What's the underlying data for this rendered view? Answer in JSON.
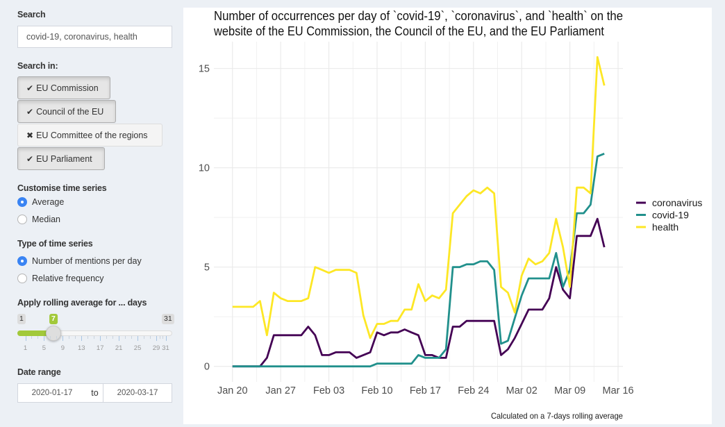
{
  "sidebar": {
    "search": {
      "label": "Search",
      "value": "covid-19, coronavirus, health"
    },
    "search_in": {
      "label": "Search in:",
      "options": [
        {
          "label": "EU Commission",
          "selected": true,
          "icon": "check-icon"
        },
        {
          "label": "Council of the EU",
          "selected": true,
          "icon": "check-icon"
        },
        {
          "label": "EU Committee of the regions",
          "selected": false,
          "icon": "cross-icon"
        },
        {
          "label": "EU Parliament",
          "selected": true,
          "icon": "check-icon"
        }
      ]
    },
    "customise": {
      "label": "Customise time series",
      "options": [
        {
          "label": "Average",
          "checked": true
        },
        {
          "label": "Median",
          "checked": false
        }
      ]
    },
    "series_type": {
      "label": "Type of time series",
      "options": [
        {
          "label": "Number of mentions per day",
          "checked": true
        },
        {
          "label": "Relative frequency",
          "checked": false
        }
      ]
    },
    "rolling": {
      "label": "Apply rolling average for ... days",
      "min": 1,
      "max": 31,
      "value": 7,
      "grid_labels": [
        1,
        5,
        9,
        13,
        17,
        21,
        25,
        29,
        31
      ],
      "accent": "#a2c93a"
    },
    "date_range": {
      "label": "Date range",
      "start": "2020-01-17",
      "separator": "to",
      "end": "2020-03-17"
    }
  },
  "chart_data": {
    "type": "line",
    "title_lines": [
      "Number of occurrences per day of `covid-19`, `coronavirus`, and `health` on the",
      "website of the EU Commission, the Council of the EU, and the EU Parliament"
    ],
    "xlabel": "",
    "ylabel": "",
    "caption": "Calculated on a 7-days rolling average",
    "legend_position": "right",
    "grid": true,
    "ylim": [
      -0.78,
      16.35
    ],
    "x_expand": 0.05,
    "y_ticks": [
      0,
      5,
      10,
      15
    ],
    "x_ticks": [
      {
        "date": "2020-01-20",
        "label": "Jan 20"
      },
      {
        "date": "2020-01-27",
        "label": "Jan 27"
      },
      {
        "date": "2020-02-03",
        "label": "Feb 03"
      },
      {
        "date": "2020-02-10",
        "label": "Feb 10"
      },
      {
        "date": "2020-02-17",
        "label": "Feb 17"
      },
      {
        "date": "2020-02-24",
        "label": "Feb 24"
      },
      {
        "date": "2020-03-02",
        "label": "Mar 02"
      },
      {
        "date": "2020-03-09",
        "label": "Mar 09"
      },
      {
        "date": "2020-03-16",
        "label": "Mar 16"
      }
    ],
    "x": [
      "2020-01-20",
      "2020-01-21",
      "2020-01-22",
      "2020-01-23",
      "2020-01-24",
      "2020-01-25",
      "2020-01-26",
      "2020-01-27",
      "2020-01-28",
      "2020-01-29",
      "2020-01-30",
      "2020-01-31",
      "2020-02-01",
      "2020-02-02",
      "2020-02-03",
      "2020-02-04",
      "2020-02-05",
      "2020-02-06",
      "2020-02-07",
      "2020-02-08",
      "2020-02-09",
      "2020-02-10",
      "2020-02-11",
      "2020-02-12",
      "2020-02-13",
      "2020-02-14",
      "2020-02-15",
      "2020-02-16",
      "2020-02-17",
      "2020-02-18",
      "2020-02-19",
      "2020-02-20",
      "2020-02-21",
      "2020-02-22",
      "2020-02-23",
      "2020-02-24",
      "2020-02-25",
      "2020-02-26",
      "2020-02-27",
      "2020-02-28",
      "2020-02-29",
      "2020-03-01",
      "2020-03-02",
      "2020-03-03",
      "2020-03-04",
      "2020-03-05",
      "2020-03-06",
      "2020-03-07",
      "2020-03-08",
      "2020-03-09",
      "2020-03-10",
      "2020-03-11",
      "2020-03-12",
      "2020-03-13",
      "2020-03-14"
    ],
    "series": [
      {
        "name": "coronavirus",
        "color": "#440154",
        "values": [
          0,
          0,
          0,
          0,
          0,
          0.43,
          1.57,
          1.57,
          1.57,
          1.57,
          1.57,
          2.0,
          1.57,
          0.57,
          0.57,
          0.71,
          0.71,
          0.71,
          0.43,
          0.57,
          0.71,
          1.71,
          1.57,
          1.71,
          1.71,
          1.86,
          1.71,
          1.57,
          0.57,
          0.57,
          0.43,
          0.43,
          2.0,
          2.0,
          2.29,
          2.29,
          2.29,
          2.29,
          2.29,
          0.57,
          0.86,
          1.43,
          2.14,
          2.86,
          2.86,
          2.86,
          3.43,
          5.0,
          3.86,
          3.43,
          6.57,
          6.57,
          6.57,
          7.43,
          6.0
        ]
      },
      {
        "name": "covid-19",
        "color": "#21908C",
        "values": [
          0,
          0,
          0,
          0,
          0,
          0,
          0,
          0,
          0,
          0,
          0,
          0,
          0,
          0,
          0,
          0,
          0,
          0,
          0,
          0,
          0,
          0.14,
          0.14,
          0.14,
          0.14,
          0.14,
          0.14,
          0.57,
          0.43,
          0.43,
          0.43,
          0.86,
          5.0,
          5.0,
          5.14,
          5.14,
          5.29,
          5.29,
          4.86,
          1.14,
          1.29,
          2.43,
          3.57,
          4.43,
          4.43,
          4.43,
          4.43,
          5.71,
          4.0,
          4.86,
          7.71,
          7.71,
          8.14,
          10.57,
          10.71
        ]
      },
      {
        "name": "health",
        "color": "#FDE725",
        "values": [
          3.0,
          3.0,
          3.0,
          3.0,
          3.29,
          1.57,
          3.71,
          3.43,
          3.29,
          3.29,
          3.29,
          3.43,
          5.0,
          4.86,
          4.71,
          4.86,
          4.86,
          4.86,
          4.71,
          2.57,
          1.43,
          2.14,
          2.14,
          2.29,
          2.29,
          2.86,
          2.86,
          4.14,
          3.29,
          3.57,
          3.43,
          3.86,
          7.71,
          8.14,
          8.57,
          8.86,
          8.71,
          9.0,
          8.71,
          4.0,
          3.71,
          2.71,
          4.57,
          5.43,
          5.14,
          5.29,
          5.71,
          7.43,
          6.0,
          4.0,
          9.0,
          9.0,
          8.71,
          15.57,
          14.14
        ]
      }
    ]
  }
}
